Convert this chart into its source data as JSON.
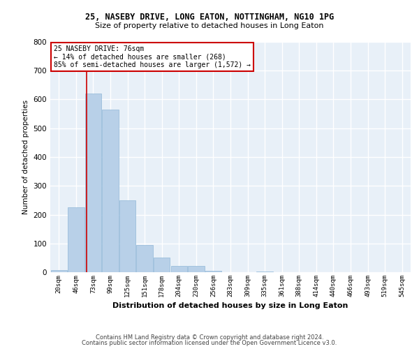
{
  "title1": "25, NASEBY DRIVE, LONG EATON, NOTTINGHAM, NG10 1PG",
  "title2": "Size of property relative to detached houses in Long Eaton",
  "xlabel": "Distribution of detached houses by size in Long Eaton",
  "ylabel": "Number of detached properties",
  "bar_color": "#b8d0e8",
  "bar_edge_color": "#90b8d8",
  "bg_color": "#e8f0f8",
  "grid_color": "#ffffff",
  "categories": [
    "20sqm",
    "46sqm",
    "73sqm",
    "99sqm",
    "125sqm",
    "151sqm",
    "178sqm",
    "204sqm",
    "230sqm",
    "256sqm",
    "283sqm",
    "309sqm",
    "335sqm",
    "361sqm",
    "388sqm",
    "414sqm",
    "440sqm",
    "466sqm",
    "493sqm",
    "519sqm",
    "545sqm"
  ],
  "values": [
    8,
    225,
    620,
    565,
    250,
    95,
    50,
    22,
    22,
    5,
    0,
    0,
    3,
    0,
    0,
    0,
    0,
    0,
    0,
    0,
    0
  ],
  "vline_color": "#cc0000",
  "annotation_title": "25 NASEBY DRIVE: 76sqm",
  "annotation_line1": "← 14% of detached houses are smaller (268)",
  "annotation_line2": "85% of semi-detached houses are larger (1,572) →",
  "annotation_box_color": "#cc0000",
  "ylim": [
    0,
    800
  ],
  "yticks": [
    0,
    100,
    200,
    300,
    400,
    500,
    600,
    700,
    800
  ],
  "footer1": "Contains HM Land Registry data © Crown copyright and database right 2024.",
  "footer2": "Contains public sector information licensed under the Open Government Licence v3.0."
}
